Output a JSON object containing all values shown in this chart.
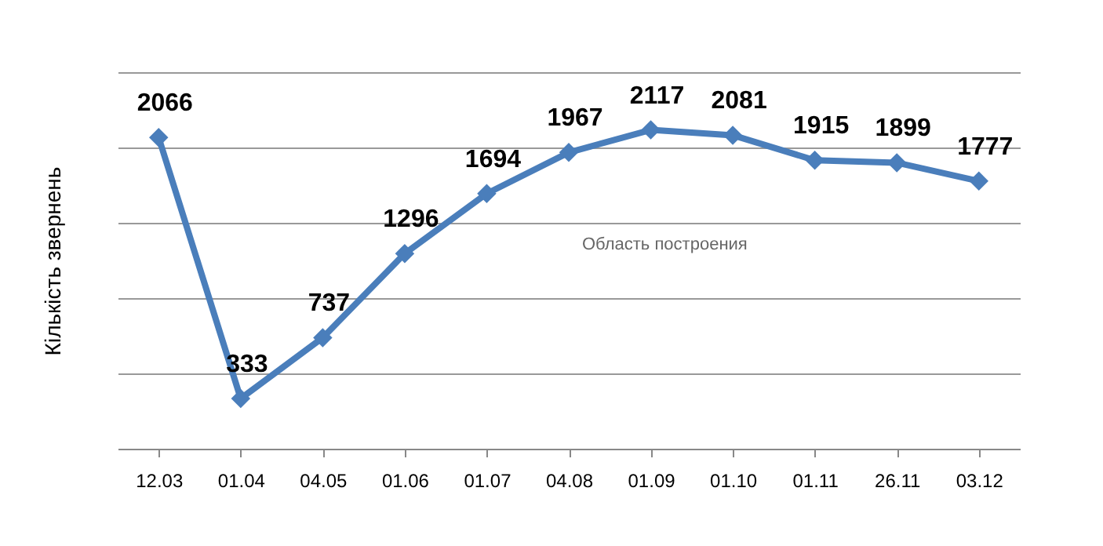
{
  "chart_data": {
    "type": "line",
    "ylabel": "Кількість звернень",
    "categories": [
      "12.03",
      "01.04",
      "04.05",
      "01.06",
      "01.07",
      "04.08",
      "01.09",
      "01.10",
      "01.11",
      "26.11",
      "03.12"
    ],
    "series": [
      {
        "color": "#4a7ebb",
        "values": [
          2066,
          333,
          737,
          1296,
          1694,
          1967,
          2117,
          2081,
          1915,
          1899,
          1777
        ]
      }
    ],
    "ylim": [
      0,
      2500
    ],
    "yticks": [
      {
        "value": 0,
        "label": null
      },
      {
        "value": 500,
        "label": null
      },
      {
        "value": 1000,
        "label": null
      },
      {
        "value": 1500,
        "label": null
      },
      {
        "value": 2000,
        "label": null
      },
      {
        "value": 2500,
        "label": null
      }
    ],
    "tick_labels": "x",
    "grid": "y",
    "marker": "diamond",
    "line_style": "solid",
    "data_labels": true,
    "legend": false,
    "annotations": [
      "Область построения"
    ]
  }
}
